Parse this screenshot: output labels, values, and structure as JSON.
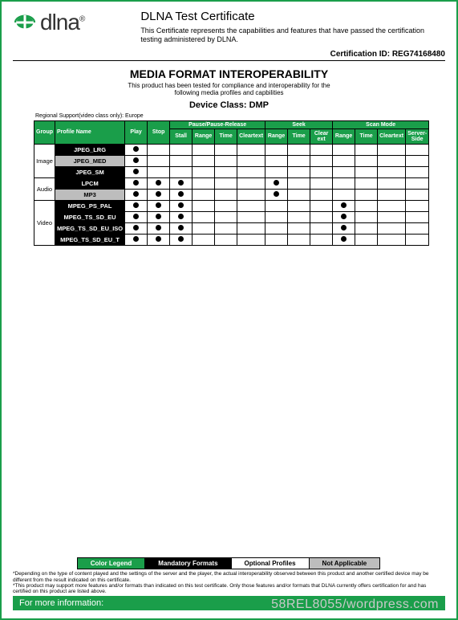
{
  "colors": {
    "brand_green": "#1a9e4a",
    "black": "#000000",
    "grey": "#bdbdbd",
    "white": "#ffffff"
  },
  "header": {
    "logo_text": "dlna",
    "logo_reg": "®",
    "title": "DLNA Test Certificate",
    "subtitle": "This Certificate represents the capabilities and features that have passed the certification testing administered by DLNA.",
    "cert_id_label": "Certification ID:",
    "cert_id_value": "REG74168480"
  },
  "section": {
    "title": "MEDIA FORMAT INTEROPERABILITY",
    "desc_line1": "This product has been tested for compliance and interoperability for the",
    "desc_line2": "following media profiles and capbilities",
    "device_class_label": "Device Class:",
    "device_class_value": "DMP",
    "regional": "Regional Support(video class only): Europe"
  },
  "table": {
    "group_header": "Group",
    "profile_header": "Profile Name",
    "play_header": "Play",
    "stop_header": "Stop",
    "groups_top": {
      "ppr": "Pause/Pause-Release",
      "seek": "Seek",
      "scan": "Scan Mode"
    },
    "ppr_cols": [
      "Stall",
      "Range",
      "Time",
      "Cleartext"
    ],
    "seek_cols": [
      "Range",
      "Time",
      "Clear ext"
    ],
    "scan_cols": [
      "Range",
      "Time",
      "Cleartext",
      "Server-Side"
    ],
    "rows": [
      {
        "group": "Image",
        "group_span": 3,
        "profile": "JPEG_LRG",
        "style": "black",
        "dots": {
          "play": true
        }
      },
      {
        "profile": "JPEG_MED",
        "style": "grey",
        "dots": {
          "play": true
        }
      },
      {
        "profile": "JPEG_SM",
        "style": "black",
        "dots": {
          "play": true
        }
      },
      {
        "group": "Audio",
        "group_span": 2,
        "profile": "LPCM",
        "style": "black",
        "dots": {
          "play": true,
          "stop": true,
          "ppr0": true,
          "seek0": true
        }
      },
      {
        "profile": "MP3",
        "style": "grey",
        "dots": {
          "play": true,
          "stop": true,
          "ppr0": true,
          "seek0": true
        }
      },
      {
        "group": "Video",
        "group_span": 4,
        "profile": "MPEG_PS_PAL",
        "style": "black",
        "dots": {
          "play": true,
          "stop": true,
          "ppr0": true,
          "scan0": true
        }
      },
      {
        "profile": "MPEG_TS_SD_EU",
        "style": "black",
        "dots": {
          "play": true,
          "stop": true,
          "ppr0": true,
          "scan0": true
        }
      },
      {
        "profile": "MPEG_TS_SD_EU_ISO",
        "style": "black",
        "dots": {
          "play": true,
          "stop": true,
          "ppr0": true,
          "scan0": true
        }
      },
      {
        "profile": "MPEG_TS_SD_EU_T",
        "style": "black",
        "dots": {
          "play": true,
          "stop": true,
          "ppr0": true,
          "scan0": true
        }
      }
    ]
  },
  "legend": {
    "color_legend": "Color Legend",
    "mandatory": "Mandatory Formats",
    "optional": "Optional Profiles",
    "not_applicable": "Not Applicable"
  },
  "disclaimer": "*Depending on the type of content played and the settings of the server and the player, the actual interoperability observed between this product and another certified device may be different from the result indicated on this certificate.\n*This product may support more features and/or formats than indicated on this test certificate. Only those features and/or formats that DLNA currently offers certification for and has certified on this product are listed above.",
  "more_info": "For more information:",
  "watermark": "58REL8055/wordpress.com"
}
